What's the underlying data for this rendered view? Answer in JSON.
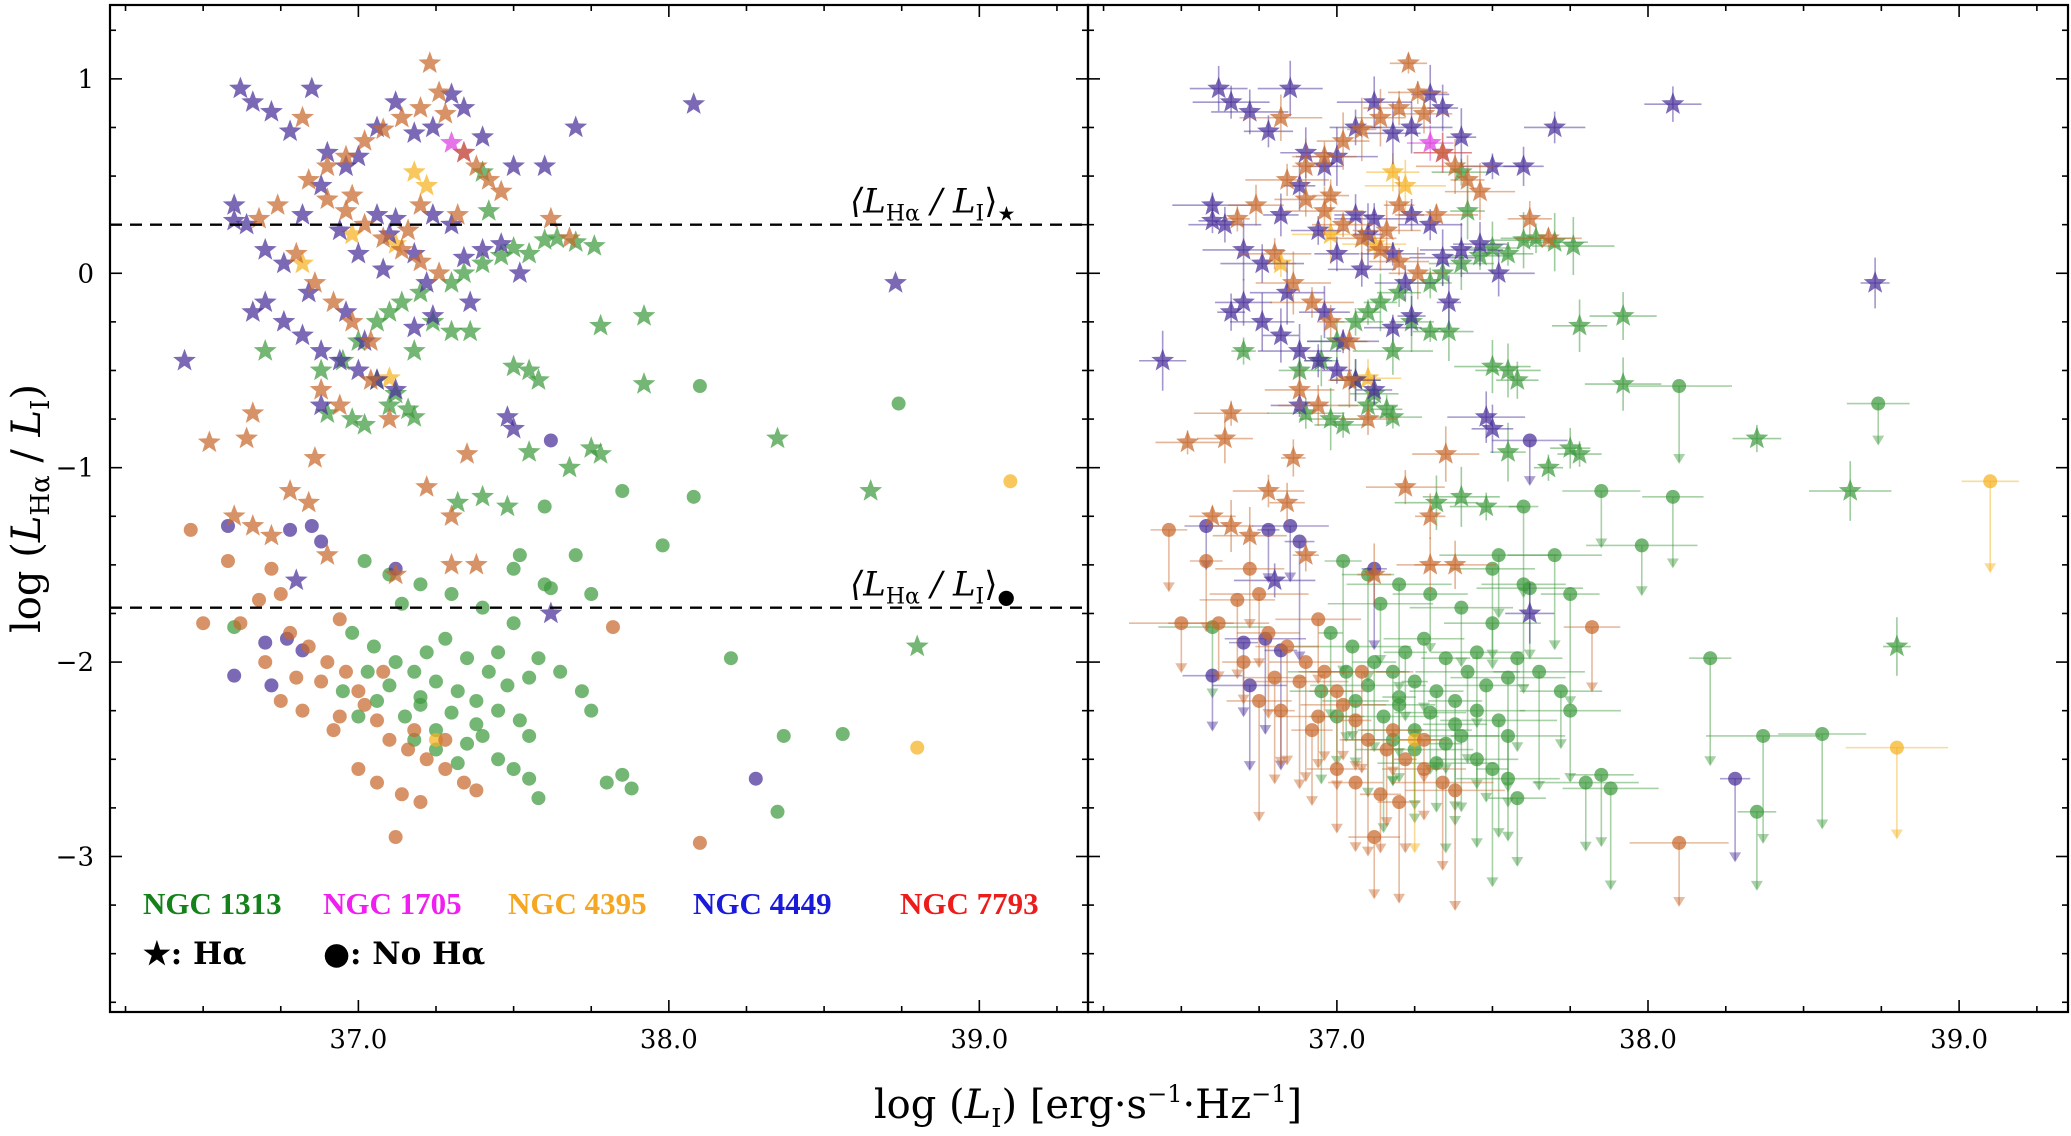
{
  "chart_data": {
    "type": "scatter",
    "xlabel": "log (L_I) [erg·s⁻¹·Hz⁻¹]",
    "ylabel": "log (L_Hα / L_I)",
    "xlim": [
      36.2,
      39.35
    ],
    "ylim": [
      -3.8,
      1.38
    ],
    "xticks": [
      "37.0",
      "38.0",
      "39.0"
    ],
    "yticks": [
      "1",
      "0",
      "−1",
      "−2",
      "−3"
    ],
    "grid": false,
    "legend_position": "bottom-left",
    "panels": [
      "left: points only",
      "right: points with error bars / upper limits"
    ],
    "reference_lines": [
      {
        "name": "mean_star",
        "y": 0.25,
        "label": "⟨L_Hα / L_I⟩★"
      },
      {
        "name": "mean_dot",
        "y": -1.72,
        "label": "⟨L_Hα / L_I⟩●"
      }
    ],
    "markers": {
      "star": "★: Hα",
      "dot": "●: No Hα"
    },
    "series": [
      {
        "name": "NGC 1313",
        "color": "#3f9a3f",
        "stars": [
          [
            37.6,
            0.17
          ],
          [
            37.64,
            0.18
          ],
          [
            37.7,
            0.16
          ],
          [
            37.76,
            0.14
          ],
          [
            37.5,
            0.13
          ],
          [
            37.55,
            0.1
          ],
          [
            37.46,
            0.09
          ],
          [
            37.4,
            0.05
          ],
          [
            37.34,
            0.0
          ],
          [
            37.3,
            -0.05
          ],
          [
            37.2,
            -0.1
          ],
          [
            37.14,
            -0.15
          ],
          [
            37.1,
            -0.2
          ],
          [
            37.24,
            -0.25
          ],
          [
            37.3,
            -0.3
          ],
          [
            37.0,
            -0.35
          ],
          [
            36.95,
            -0.45
          ],
          [
            36.88,
            -0.5
          ],
          [
            37.06,
            -0.55
          ],
          [
            37.12,
            -0.62
          ],
          [
            37.16,
            -0.7
          ],
          [
            37.18,
            -0.74
          ],
          [
            37.02,
            -0.78
          ],
          [
            36.9,
            -0.72
          ],
          [
            36.7,
            -0.4
          ],
          [
            37.55,
            -0.5
          ],
          [
            37.5,
            -0.48
          ],
          [
            37.58,
            -0.55
          ],
          [
            37.75,
            -0.9
          ],
          [
            37.78,
            -0.93
          ],
          [
            37.55,
            -0.92
          ],
          [
            37.92,
            -0.57
          ],
          [
            38.35,
            -0.85
          ],
          [
            38.65,
            -1.12
          ],
          [
            38.8,
            -1.92
          ],
          [
            37.78,
            -0.27
          ],
          [
            37.92,
            -0.22
          ],
          [
            37.36,
            -0.3
          ],
          [
            37.4,
            0.52
          ],
          [
            37.42,
            0.32
          ],
          [
            37.06,
            -0.25
          ],
          [
            37.18,
            -0.4
          ],
          [
            37.48,
            -1.2
          ],
          [
            37.4,
            -1.15
          ],
          [
            37.32,
            -1.18
          ],
          [
            37.68,
            -1.0
          ],
          [
            37.1,
            -0.68
          ],
          [
            36.98,
            -0.75
          ]
        ],
        "dots": [
          [
            36.6,
            -1.82
          ],
          [
            37.1,
            -1.55
          ],
          [
            37.2,
            -1.6
          ],
          [
            37.3,
            -1.65
          ],
          [
            37.4,
            -1.72
          ],
          [
            37.5,
            -1.8
          ],
          [
            36.98,
            -1.85
          ],
          [
            37.05,
            -1.92
          ],
          [
            37.12,
            -2.0
          ],
          [
            37.18,
            -2.05
          ],
          [
            37.25,
            -2.1
          ],
          [
            37.32,
            -2.15
          ],
          [
            37.38,
            -2.2
          ],
          [
            37.45,
            -2.25
          ],
          [
            37.52,
            -2.3
          ],
          [
            37.55,
            -2.38
          ],
          [
            37.06,
            -2.2
          ],
          [
            37.15,
            -2.28
          ],
          [
            37.25,
            -2.35
          ],
          [
            37.35,
            -2.42
          ],
          [
            37.45,
            -2.5
          ],
          [
            37.5,
            -2.55
          ],
          [
            37.55,
            -2.6
          ],
          [
            37.58,
            -2.7
          ],
          [
            37.22,
            -1.95
          ],
          [
            37.28,
            -1.88
          ],
          [
            37.35,
            -1.98
          ],
          [
            37.42,
            -2.05
          ],
          [
            37.48,
            -2.12
          ],
          [
            37.03,
            -2.05
          ],
          [
            37.1,
            -2.12
          ],
          [
            37.2,
            -2.18
          ],
          [
            37.3,
            -2.26
          ],
          [
            37.38,
            -2.32
          ],
          [
            36.95,
            -2.15
          ],
          [
            37.0,
            -2.28
          ],
          [
            37.25,
            -2.45
          ],
          [
            37.32,
            -2.52
          ],
          [
            37.18,
            -2.4
          ],
          [
            37.4,
            -2.38
          ],
          [
            37.6,
            -1.2
          ],
          [
            37.7,
            -1.45
          ],
          [
            37.6,
            -1.6
          ],
          [
            37.75,
            -1.65
          ],
          [
            37.72,
            -2.15
          ],
          [
            37.75,
            -2.25
          ],
          [
            37.8,
            -2.62
          ],
          [
            37.85,
            -2.58
          ],
          [
            37.88,
            -2.65
          ],
          [
            37.52,
            -1.45
          ],
          [
            38.1,
            -0.58
          ],
          [
            38.74,
            -0.67
          ],
          [
            38.08,
            -1.15
          ],
          [
            37.85,
            -1.12
          ],
          [
            37.98,
            -1.4
          ],
          [
            37.58,
            -1.98
          ],
          [
            37.65,
            -2.05
          ],
          [
            38.2,
            -1.98
          ],
          [
            38.37,
            -2.38
          ],
          [
            38.56,
            -2.37
          ],
          [
            38.35,
            -2.77
          ],
          [
            37.62,
            -1.62
          ],
          [
            37.5,
            -1.52
          ],
          [
            37.55,
            -2.08
          ],
          [
            37.14,
            -1.7
          ],
          [
            37.02,
            -1.48
          ],
          [
            37.45,
            -1.95
          ],
          [
            37.2,
            -2.22
          ]
        ]
      },
      {
        "name": "NGC 1705",
        "color": "#dd3ee0",
        "stars": [
          [
            37.3,
            0.67
          ],
          [
            37.34,
            0.62
          ]
        ],
        "dots": []
      },
      {
        "name": "NGC 4395",
        "color": "#f5b120",
        "stars": [
          [
            37.22,
            0.45
          ],
          [
            36.98,
            0.2
          ],
          [
            37.12,
            0.15
          ],
          [
            36.82,
            0.05
          ],
          [
            37.1,
            -0.54
          ],
          [
            37.18,
            0.52
          ]
        ],
        "dots": [
          [
            39.1,
            -1.07
          ],
          [
            38.8,
            -2.44
          ],
          [
            37.25,
            -2.4
          ]
        ]
      },
      {
        "name": "NGC 4449",
        "color": "#4a2f9a",
        "stars": [
          [
            36.62,
            0.95
          ],
          [
            36.66,
            0.88
          ],
          [
            36.72,
            0.83
          ],
          [
            36.78,
            0.73
          ],
          [
            36.85,
            0.95
          ],
          [
            36.9,
            0.62
          ],
          [
            36.96,
            0.55
          ],
          [
            37.0,
            0.6
          ],
          [
            37.06,
            0.75
          ],
          [
            37.12,
            0.88
          ],
          [
            37.18,
            0.72
          ],
          [
            37.24,
            0.75
          ],
          [
            37.3,
            0.92
          ],
          [
            37.34,
            0.85
          ],
          [
            37.4,
            0.7
          ],
          [
            37.5,
            0.55
          ],
          [
            37.6,
            0.55
          ],
          [
            37.7,
            0.75
          ],
          [
            38.08,
            0.87
          ],
          [
            36.6,
            0.35
          ],
          [
            36.64,
            0.25
          ],
          [
            36.7,
            0.12
          ],
          [
            36.76,
            0.05
          ],
          [
            36.82,
            0.3
          ],
          [
            36.88,
            0.45
          ],
          [
            36.94,
            0.22
          ],
          [
            37.0,
            0.1
          ],
          [
            37.06,
            0.3
          ],
          [
            37.12,
            0.28
          ],
          [
            37.18,
            0.1
          ],
          [
            37.24,
            0.3
          ],
          [
            37.3,
            0.25
          ],
          [
            37.34,
            0.08
          ],
          [
            37.4,
            0.12
          ],
          [
            37.46,
            0.15
          ],
          [
            37.52,
            0.0
          ],
          [
            36.7,
            -0.15
          ],
          [
            36.76,
            -0.25
          ],
          [
            36.82,
            -0.32
          ],
          [
            36.88,
            -0.4
          ],
          [
            36.94,
            -0.45
          ],
          [
            37.0,
            -0.5
          ],
          [
            37.06,
            -0.55
          ],
          [
            37.12,
            -0.6
          ],
          [
            37.02,
            -0.35
          ],
          [
            36.96,
            -0.2
          ],
          [
            37.18,
            -0.28
          ],
          [
            37.24,
            -0.22
          ],
          [
            36.44,
            -0.45
          ],
          [
            36.84,
            -0.1
          ],
          [
            38.73,
            -0.05
          ],
          [
            37.48,
            -0.74
          ],
          [
            37.5,
            -0.8
          ],
          [
            36.8,
            -1.58
          ],
          [
            36.66,
            -0.2
          ],
          [
            37.08,
            0.02
          ],
          [
            37.22,
            -0.05
          ],
          [
            37.36,
            -0.15
          ],
          [
            37.1,
            0.2
          ],
          [
            36.6,
            0.27
          ],
          [
            37.62,
            -1.75
          ],
          [
            36.88,
            -0.68
          ]
        ],
        "dots": [
          [
            36.58,
            -1.3
          ],
          [
            36.78,
            -1.32
          ],
          [
            36.85,
            -1.3
          ],
          [
            36.88,
            -1.38
          ],
          [
            36.7,
            -1.9
          ],
          [
            36.77,
            -1.88
          ],
          [
            36.72,
            -2.12
          ],
          [
            36.6,
            -2.07
          ],
          [
            36.82,
            -1.94
          ],
          [
            37.62,
            -0.86
          ],
          [
            38.28,
            -2.6
          ],
          [
            37.12,
            -1.52
          ]
        ]
      },
      {
        "name": "NGC 7793",
        "color": "#c8692c",
        "stars": [
          [
            37.23,
            1.08
          ],
          [
            37.26,
            0.93
          ],
          [
            37.2,
            0.85
          ],
          [
            37.14,
            0.8
          ],
          [
            37.08,
            0.74
          ],
          [
            37.02,
            0.68
          ],
          [
            36.96,
            0.6
          ],
          [
            36.9,
            0.55
          ],
          [
            36.84,
            0.48
          ],
          [
            36.9,
            0.38
          ],
          [
            36.96,
            0.32
          ],
          [
            37.02,
            0.25
          ],
          [
            37.08,
            0.18
          ],
          [
            37.14,
            0.12
          ],
          [
            37.2,
            0.06
          ],
          [
            37.26,
            0.0
          ],
          [
            37.34,
            0.62
          ],
          [
            37.38,
            0.55
          ],
          [
            37.42,
            0.48
          ],
          [
            36.68,
            0.28
          ],
          [
            36.74,
            0.35
          ],
          [
            36.8,
            0.1
          ],
          [
            36.86,
            -0.05
          ],
          [
            36.92,
            -0.15
          ],
          [
            36.98,
            -0.25
          ],
          [
            37.04,
            -0.35
          ],
          [
            36.52,
            -0.87
          ],
          [
            36.64,
            -0.85
          ],
          [
            36.88,
            -0.6
          ],
          [
            36.94,
            -0.68
          ],
          [
            37.1,
            -0.75
          ],
          [
            37.35,
            -0.93
          ],
          [
            37.22,
            -1.1
          ],
          [
            37.3,
            -1.25
          ],
          [
            36.78,
            -1.12
          ],
          [
            36.84,
            -1.18
          ],
          [
            36.6,
            -1.25
          ],
          [
            36.66,
            -1.3
          ],
          [
            36.72,
            -1.35
          ],
          [
            36.9,
            -1.45
          ],
          [
            37.12,
            -1.55
          ],
          [
            37.3,
            -1.5
          ],
          [
            37.38,
            -1.5
          ],
          [
            36.86,
            -0.95
          ],
          [
            37.2,
            0.35
          ],
          [
            37.32,
            0.3
          ],
          [
            37.16,
            0.22
          ],
          [
            37.62,
            0.28
          ],
          [
            37.68,
            0.18
          ],
          [
            37.28,
            0.82
          ],
          [
            37.46,
            0.42
          ],
          [
            36.98,
            0.4
          ],
          [
            36.66,
            -0.72
          ],
          [
            37.04,
            -0.55
          ],
          [
            36.82,
            0.8
          ]
        ],
        "dots": [
          [
            36.46,
            -1.32
          ],
          [
            36.5,
            -1.8
          ],
          [
            36.58,
            -1.48
          ],
          [
            36.62,
            -1.8
          ],
          [
            36.68,
            -1.68
          ],
          [
            36.72,
            -1.52
          ],
          [
            36.78,
            -1.85
          ],
          [
            36.84,
            -1.92
          ],
          [
            36.9,
            -2.0
          ],
          [
            36.96,
            -2.05
          ],
          [
            36.7,
            -2.0
          ],
          [
            36.75,
            -2.2
          ],
          [
            36.82,
            -2.25
          ],
          [
            36.88,
            -2.1
          ],
          [
            36.94,
            -2.28
          ],
          [
            37.0,
            -2.15
          ],
          [
            37.06,
            -2.3
          ],
          [
            37.1,
            -2.4
          ],
          [
            37.16,
            -2.45
          ],
          [
            37.22,
            -2.5
          ],
          [
            37.28,
            -2.55
          ],
          [
            37.34,
            -2.62
          ],
          [
            37.38,
            -2.66
          ],
          [
            37.0,
            -2.55
          ],
          [
            37.06,
            -2.62
          ],
          [
            37.14,
            -2.68
          ],
          [
            37.2,
            -2.72
          ],
          [
            36.8,
            -2.08
          ],
          [
            36.92,
            -2.35
          ],
          [
            37.12,
            -2.9
          ],
          [
            37.82,
            -1.82
          ],
          [
            38.1,
            -2.93
          ],
          [
            37.28,
            -2.4
          ],
          [
            36.94,
            -1.78
          ],
          [
            36.75,
            -1.65
          ],
          [
            37.08,
            -2.05
          ],
          [
            37.02,
            -2.22
          ],
          [
            37.18,
            -2.35
          ]
        ]
      }
    ]
  },
  "legend": {
    "names": [
      "NGC 1313",
      "NGC 1705",
      "NGC 4395",
      "NGC 4449",
      "NGC 7793"
    ],
    "name_colors": [
      "#14821a",
      "#f01ef0",
      "#f5a623",
      "#1a1adb",
      "#ee1b1b"
    ],
    "star_label": "★: Hα",
    "dot_label": "●: No Hα"
  },
  "ref_labels": {
    "star": "⟨L",
    "dot": "⟨L"
  }
}
